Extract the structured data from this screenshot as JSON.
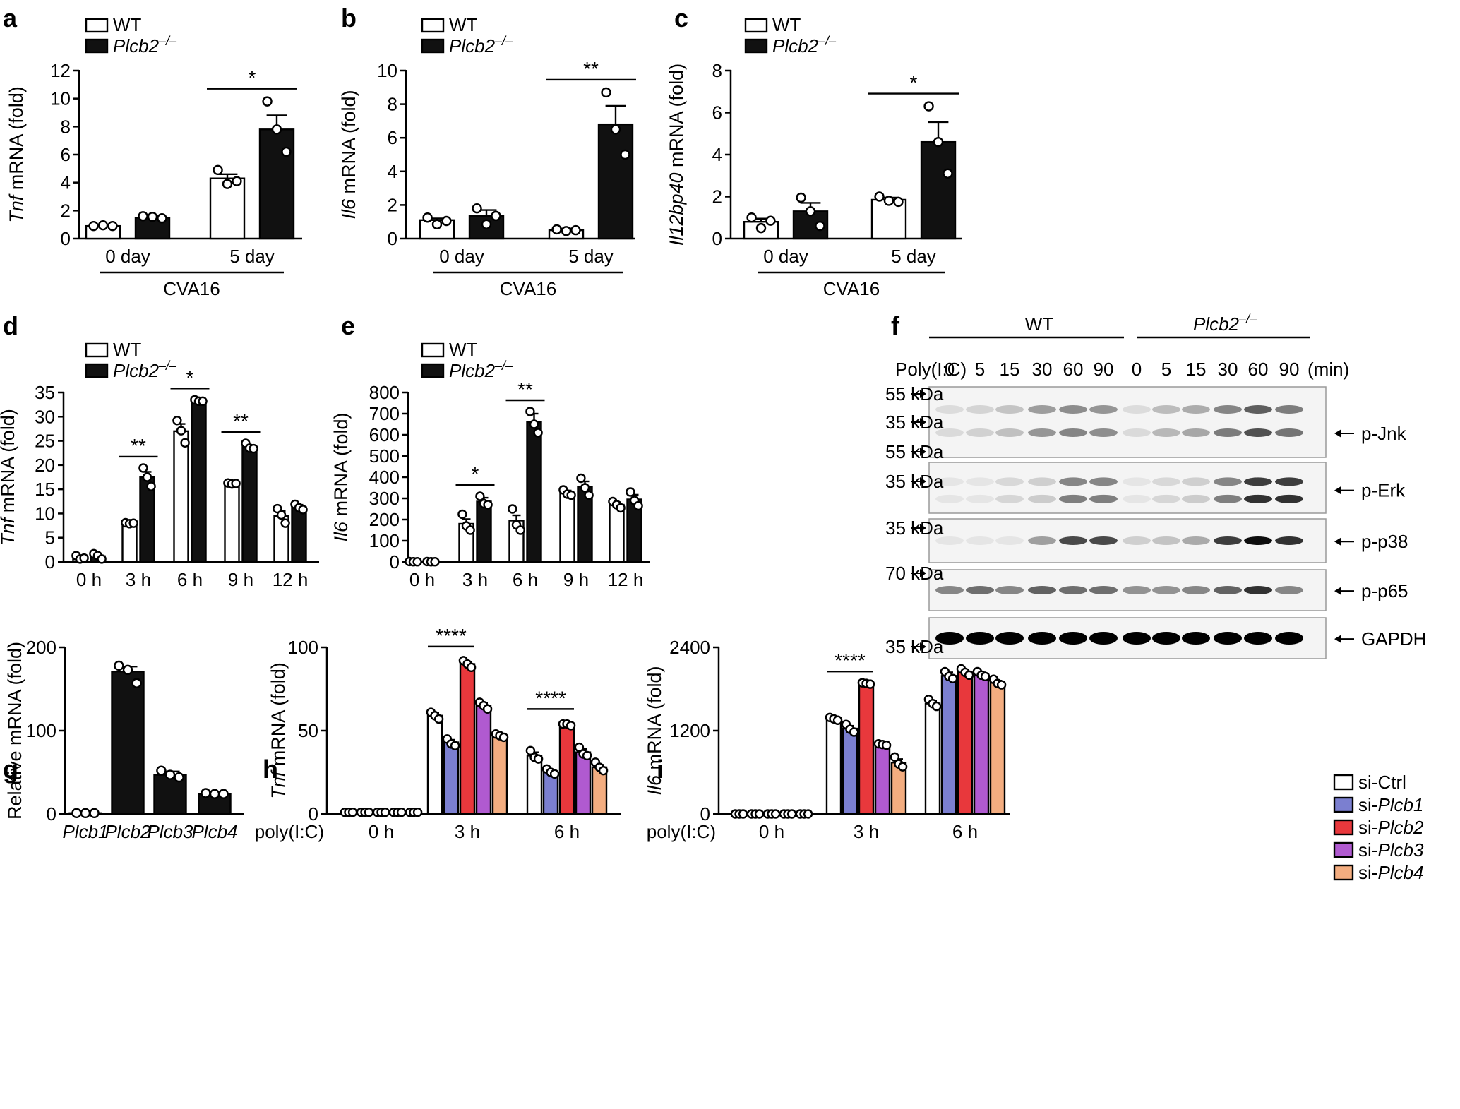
{
  "legend_wt_ko": {
    "wt": "WT",
    "ko": "Plcb2",
    "ko_sup": "–/–"
  },
  "cva16_label": "CVA16",
  "colors": {
    "white": "#ffffff",
    "black": "#111111",
    "si_ctrl": "#ffffff",
    "si_plcb1": "#7b7fd0",
    "si_plcb2": "#e8383c",
    "si_plcb3": "#b05ad0",
    "si_plcb4": "#f3ad80"
  },
  "chart_data": [
    {
      "panel": "a",
      "type": "bar",
      "ylabel_gene": "Tnf",
      "ylabel_rest": " mRNA (fold)",
      "categories": [
        "0 day",
        "5 day"
      ],
      "ylim": [
        0,
        12
      ],
      "yticks": [
        0,
        2,
        4,
        6,
        8,
        10,
        12
      ],
      "series": [
        {
          "name": "WT",
          "values": [
            0.9,
            4.3
          ],
          "errors": [
            0.05,
            0.3
          ],
          "points": [
            [
              0.9,
              0.95,
              0.9
            ],
            [
              4.9,
              3.9,
              4.1
            ]
          ]
        },
        {
          "name": "Plcb2–/–",
          "values": [
            1.5,
            7.8
          ],
          "errors": [
            0.1,
            1.0
          ],
          "points": [
            [
              1.6,
              1.55,
              1.45
            ],
            [
              9.8,
              7.8,
              6.2
            ]
          ]
        }
      ],
      "significance": [
        {
          "group": 1,
          "label": "*"
        }
      ],
      "group_label": "CVA16"
    },
    {
      "panel": "b",
      "type": "bar",
      "ylabel_gene": "Il6",
      "ylabel_rest": " mRNA (fold)",
      "categories": [
        "0 day",
        "5 day"
      ],
      "ylim": [
        0,
        10
      ],
      "yticks": [
        0,
        2,
        4,
        6,
        8,
        10
      ],
      "series": [
        {
          "name": "WT",
          "values": [
            1.1,
            0.5
          ],
          "errors": [
            0.1,
            0.1
          ],
          "points": [
            [
              1.25,
              0.85,
              1.05
            ],
            [
              0.55,
              0.45,
              0.5
            ]
          ]
        },
        {
          "name": "Plcb2–/–",
          "values": [
            1.35,
            6.8
          ],
          "errors": [
            0.35,
            1.1
          ],
          "points": [
            [
              1.8,
              0.85,
              1.35
            ],
            [
              8.7,
              6.5,
              5.0
            ]
          ]
        }
      ],
      "significance": [
        {
          "group": 1,
          "label": "**"
        }
      ],
      "group_label": "CVA16"
    },
    {
      "panel": "c",
      "type": "bar",
      "ylabel_gene": "Il12bp40",
      "ylabel_rest": " mRNA (fold)",
      "categories": [
        "0 day",
        "5 day"
      ],
      "ylim": [
        0,
        8
      ],
      "yticks": [
        0,
        2,
        4,
        6,
        8
      ],
      "series": [
        {
          "name": "WT",
          "values": [
            0.8,
            1.85
          ],
          "errors": [
            0.15,
            0.1
          ],
          "points": [
            [
              1.0,
              0.5,
              0.85
            ],
            [
              2.0,
              1.8,
              1.75
            ]
          ]
        },
        {
          "name": "Plcb2–/–",
          "values": [
            1.3,
            4.6
          ],
          "errors": [
            0.4,
            0.95
          ],
          "points": [
            [
              1.95,
              1.3,
              0.6
            ],
            [
              6.3,
              4.6,
              3.1
            ]
          ]
        }
      ],
      "significance": [
        {
          "group": 1,
          "label": "*"
        }
      ],
      "group_label": "CVA16"
    },
    {
      "panel": "d",
      "type": "bar",
      "ylabel_gene": "Tnf",
      "ylabel_rest": " mRNA (fold)",
      "categories": [
        "0 h",
        "3 h",
        "6 h",
        "9 h",
        "12 h"
      ],
      "ylim": [
        0,
        35
      ],
      "yticks": [
        0,
        5,
        10,
        15,
        20,
        25,
        30,
        35
      ],
      "series": [
        {
          "name": "WT",
          "values": [
            0.9,
            8.0,
            27.0,
            16.2,
            9.5
          ],
          "errors": [
            0.3,
            0.2,
            1.5,
            0.2,
            1.0
          ],
          "points": [
            [
              1.3,
              0.6,
              0.8
            ],
            [
              8.1,
              7.9,
              8.0
            ],
            [
              29.2,
              27.1,
              24.6
            ],
            [
              16.3,
              16.1,
              16.2
            ],
            [
              11.0,
              9.7,
              8.0
            ]
          ]
        },
        {
          "name": "Plcb2–/–",
          "values": [
            1.2,
            17.5,
            33.3,
            23.8,
            11.3
          ],
          "errors": [
            0.3,
            1.1,
            0.2,
            0.3,
            0.5
          ],
          "points": [
            [
              1.7,
              1.3,
              0.6
            ],
            [
              19.4,
              17.5,
              15.6
            ],
            [
              33.5,
              33.2,
              33.2
            ],
            [
              24.5,
              23.5,
              23.4
            ],
            [
              11.9,
              11.2,
              10.8
            ]
          ]
        }
      ],
      "significance": [
        {
          "group": 1,
          "label": "**"
        },
        {
          "group": 2,
          "label": "*"
        },
        {
          "group": 3,
          "label": "**"
        }
      ]
    },
    {
      "panel": "e",
      "type": "bar",
      "ylabel_gene": "Il6",
      "ylabel_rest": " mRNA (fold)",
      "categories": [
        "0 h",
        "3 h",
        "6 h",
        "9 h",
        "12 h"
      ],
      "ylim": [
        0,
        800
      ],
      "yticks": [
        0,
        100,
        200,
        300,
        400,
        500,
        600,
        700,
        800
      ],
      "series": [
        {
          "name": "WT",
          "values": [
            1,
            180,
            195,
            325,
            270
          ],
          "errors": [
            1,
            22,
            25,
            12,
            12
          ],
          "points": [
            [
              2,
              1,
              1
            ],
            [
              225,
              170,
              150
            ],
            [
              250,
              175,
              150
            ],
            [
              340,
              320,
              315
            ],
            [
              285,
              270,
              255
            ]
          ]
        },
        {
          "name": "Plcb2–/–",
          "values": [
            1,
            285,
            660,
            355,
            295
          ],
          "errors": [
            1,
            18,
            40,
            25,
            22
          ],
          "points": [
            [
              2,
              1,
              1
            ],
            [
              310,
              275,
              270
            ],
            [
              710,
              650,
              610
            ],
            [
              395,
              350,
              315
            ],
            [
              330,
              290,
              265
            ]
          ]
        }
      ],
      "significance": [
        {
          "group": 1,
          "label": "*"
        },
        {
          "group": 2,
          "label": "**"
        }
      ]
    },
    {
      "panel": "f",
      "type": "table",
      "groups": [
        {
          "label": "WT"
        },
        {
          "label": "Plcb2",
          "sup": "–/–"
        }
      ],
      "treatment": "Poly(I:C)",
      "times": [
        "0",
        "5",
        "15",
        "30",
        "60",
        "90",
        "0",
        "5",
        "15",
        "30",
        "60",
        "90"
      ],
      "time_unit": "(min)",
      "markers": [
        "55 kDa",
        "35 kDa",
        "55 kDa",
        "35 kDa",
        "35 kDa",
        "70 kDa",
        "35 kDa"
      ],
      "proteins": [
        "p-Jnk",
        "p-Erk",
        "p-p38",
        "p-p65",
        "GAPDH"
      ],
      "intensities": {
        "p-Jnk": [
          0.15,
          0.2,
          0.3,
          0.55,
          0.65,
          0.6,
          0.15,
          0.35,
          0.45,
          0.7,
          0.95,
          0.75
        ],
        "p-Erk": [
          0.05,
          0.05,
          0.15,
          0.2,
          0.6,
          0.6,
          0.05,
          0.15,
          0.2,
          0.6,
          1.0,
          1.0
        ],
        "p-p38": [
          0.0,
          0.0,
          0.05,
          0.35,
          0.7,
          0.7,
          0.15,
          0.2,
          0.3,
          0.75,
          0.95,
          0.8
        ],
        "p-p65": [
          0.45,
          0.55,
          0.45,
          0.6,
          0.55,
          0.55,
          0.4,
          0.4,
          0.45,
          0.6,
          0.8,
          0.45
        ],
        "GAPDH": [
          1,
          1,
          1,
          1,
          1,
          1,
          1,
          1,
          1,
          1,
          1,
          1
        ]
      }
    },
    {
      "panel": "g",
      "type": "bar",
      "ylabel": "Relative mRNA (fold)",
      "categories": [
        "Plcb1",
        "Plcb2",
        "Plcb3",
        "Plcb4"
      ],
      "ylim": [
        0,
        200
      ],
      "yticks": [
        0,
        100,
        200
      ],
      "series": [
        {
          "name": "",
          "values": [
            1,
            171,
            47,
            24
          ],
          "errors": [
            0.5,
            6,
            4,
            1
          ],
          "points": [
            [
              1,
              1,
              1
            ],
            [
              178,
              173,
              157
            ],
            [
              52,
              47,
              44
            ],
            [
              25,
              24,
              24
            ]
          ]
        }
      ]
    },
    {
      "panel": "h",
      "type": "bar",
      "ylabel_gene": "Tnf",
      "ylabel_rest": " mRNA (fold)",
      "treatment": "poly(I:C)",
      "categories": [
        "0 h",
        "3 h",
        "6 h"
      ],
      "ylim": [
        0,
        100
      ],
      "yticks": [
        0,
        50,
        100
      ],
      "series": [
        {
          "name": "si-Ctrl",
          "values": [
            1,
            59,
            35
          ],
          "errors": [
            0,
            1.5,
            2
          ],
          "points": [
            [
              1,
              1,
              1
            ],
            [
              61,
              59,
              57
            ],
            [
              38,
              34,
              33
            ]
          ]
        },
        {
          "name": "si-Plcb1",
          "values": [
            1,
            43,
            25
          ],
          "errors": [
            0,
            1.5,
            1
          ],
          "points": [
            [
              1,
              1,
              1
            ],
            [
              45,
              42,
              41
            ],
            [
              27,
              25,
              24
            ]
          ]
        },
        {
          "name": "si-Plcb2",
          "values": [
            1,
            90,
            54
          ],
          "errors": [
            0,
            1.2,
            0.5
          ],
          "points": [
            [
              1,
              1,
              1
            ],
            [
              92,
              90,
              88
            ],
            [
              54,
              54,
              53
            ]
          ]
        },
        {
          "name": "si-Plcb3",
          "values": [
            1,
            65,
            37
          ],
          "errors": [
            0,
            1.5,
            2
          ],
          "points": [
            [
              1,
              1,
              1
            ],
            [
              67,
              65,
              63
            ],
            [
              40,
              36,
              35
            ]
          ]
        },
        {
          "name": "si-Plcb4",
          "values": [
            1,
            47,
            28
          ],
          "errors": [
            0,
            1,
            1.5
          ],
          "points": [
            [
              1,
              1,
              1
            ],
            [
              48,
              47,
              46
            ],
            [
              31,
              28,
              26
            ]
          ]
        }
      ],
      "significance": [
        {
          "group": 1,
          "from": 0,
          "to": 2,
          "label": "****"
        },
        {
          "group": 2,
          "from": 0,
          "to": 2,
          "label": "****"
        }
      ]
    },
    {
      "panel": "i",
      "type": "bar",
      "ylabel_gene": "Il6",
      "ylabel_rest": " mRNA (fold)",
      "treatment": "poly(I:C)",
      "categories": [
        "0 h",
        "3 h",
        "6 h"
      ],
      "ylim": [
        0,
        2400
      ],
      "yticks": [
        0,
        1200,
        2400
      ],
      "series": [
        {
          "name": "si-Ctrl",
          "values": [
            0,
            1370,
            1590
          ],
          "errors": [
            0,
            20,
            40
          ],
          "points": [
            [
              0,
              0,
              0
            ],
            [
              1390,
              1370,
              1350
            ],
            [
              1650,
              1590,
              1550
            ]
          ]
        },
        {
          "name": "si-Plcb1",
          "values": [
            0,
            1230,
            1990
          ],
          "errors": [
            0,
            40,
            50
          ],
          "points": [
            [
              0,
              0,
              0
            ],
            [
              1290,
              1220,
              1180
            ],
            [
              2050,
              1980,
              1950
            ]
          ]
        },
        {
          "name": "si-Plcb2",
          "values": [
            0,
            1880,
            2040
          ],
          "errors": [
            0,
            10,
            30
          ],
          "points": [
            [
              0,
              0,
              0
            ],
            [
              1890,
              1880,
              1870
            ],
            [
              2090,
              2040,
              2000
            ]
          ]
        },
        {
          "name": "si-Plcb3",
          "values": [
            0,
            1000,
            2010
          ],
          "errors": [
            0,
            10,
            30
          ],
          "points": [
            [
              0,
              0,
              0
            ],
            [
              1010,
              1000,
              990
            ],
            [
              2050,
              2000,
              1980
            ]
          ]
        },
        {
          "name": "si-Plcb4",
          "values": [
            0,
            740,
            1890
          ],
          "errors": [
            0,
            50,
            30
          ],
          "points": [
            [
              0,
              0,
              0
            ],
            [
              820,
              720,
              680
            ],
            [
              1940,
              1880,
              1860
            ]
          ]
        }
      ],
      "significance": [
        {
          "group": 1,
          "from": 0,
          "to": 2,
          "label": "****"
        }
      ]
    }
  ]
}
